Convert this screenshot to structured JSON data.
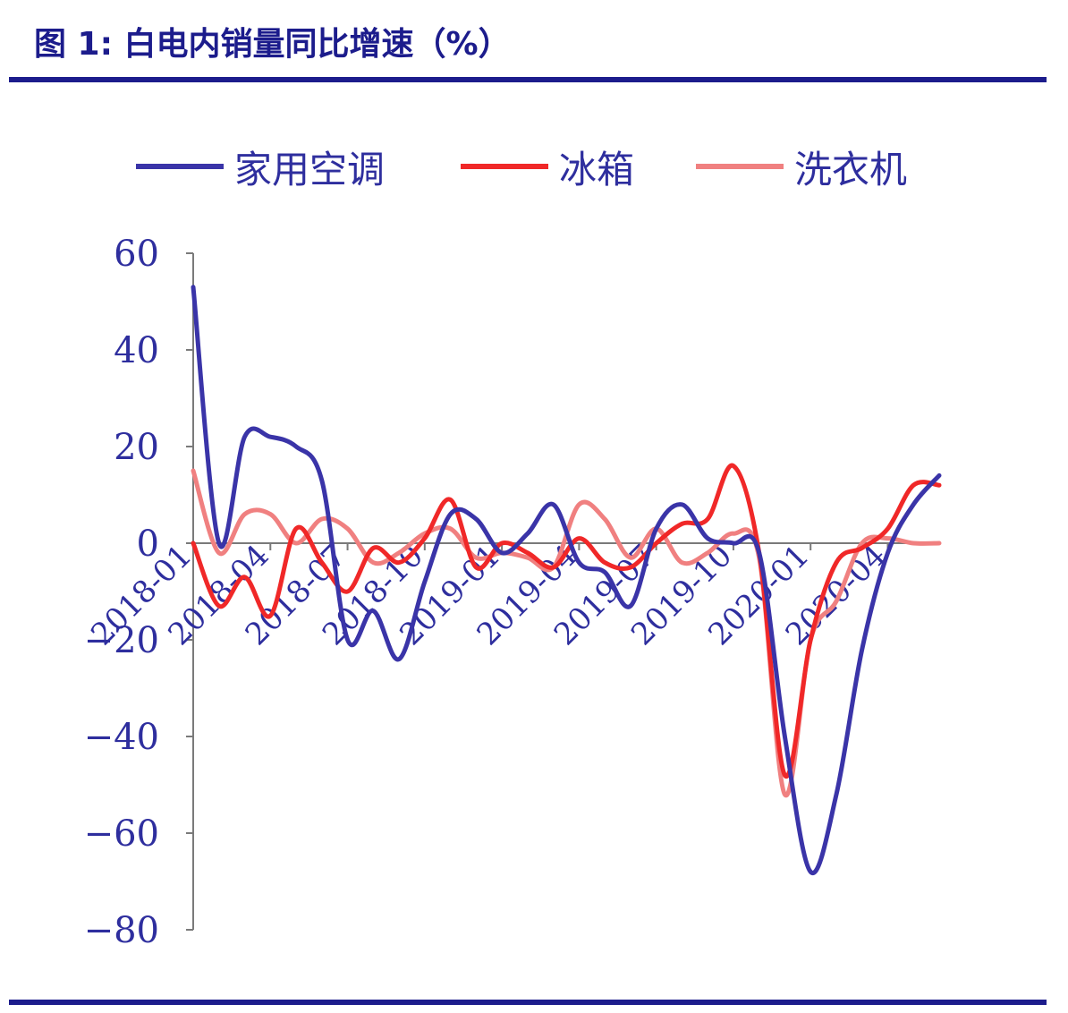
{
  "figure": {
    "title": "图  1:  白电内销量同比增速（%）"
  },
  "colors": {
    "frame": "#1c1c8c",
    "text": "#2e2e9e",
    "axis": "#7a7a7a"
  },
  "chart_data": {
    "type": "line",
    "x": [
      "2018-01",
      "2018-02",
      "2018-03",
      "2018-04",
      "2018-05",
      "2018-06",
      "2018-07",
      "2018-08",
      "2018-09",
      "2018-10",
      "2018-11",
      "2018-12",
      "2019-01",
      "2019-02",
      "2019-03",
      "2019-04",
      "2019-05",
      "2019-06",
      "2019-07",
      "2019-08",
      "2019-09",
      "2019-10",
      "2019-11",
      "2019-12",
      "2020-01",
      "2020-02",
      "2020-03",
      "2020-04",
      "2020-05",
      "2020-06"
    ],
    "xticks": [
      "2018-01",
      "2018-04",
      "2018-07",
      "2018-10",
      "2019-01",
      "2019-04",
      "2019-07",
      "2019-10",
      "2020-01",
      "2020-04"
    ],
    "yticks": [
      60,
      40,
      20,
      0,
      -20,
      -40,
      -60,
      -80
    ],
    "ylim": [
      -80,
      60
    ],
    "legend_position": "top",
    "grid": false,
    "series": [
      {
        "name": "家用空调",
        "color": "#3a34a8",
        "values": [
          53,
          0,
          22,
          22,
          20,
          13,
          -20,
          -14,
          -24,
          -8,
          6,
          5,
          -2,
          2,
          8,
          -4,
          -6,
          -13,
          3,
          8,
          1,
          0,
          -2,
          -40,
          -68,
          -52,
          -22,
          -2,
          8,
          14
        ]
      },
      {
        "name": "冰箱",
        "color": "#f02828",
        "values": [
          0,
          -13,
          -7,
          -15,
          3,
          -4,
          -10,
          -1,
          -4,
          1,
          9,
          -5,
          0,
          -2,
          -5,
          1,
          -4,
          -5,
          0,
          4,
          5,
          16,
          -2,
          -48,
          -20,
          -4,
          -1,
          3,
          12,
          12
        ]
      },
      {
        "name": "洗衣机",
        "color": "#f08080",
        "values": [
          15,
          -2,
          6,
          6,
          0,
          5,
          3,
          -4,
          -2,
          2,
          3,
          -3,
          -2,
          -3,
          -5,
          8,
          5,
          -3,
          3,
          -4,
          -2,
          2,
          -3,
          -52,
          -20,
          -12,
          0,
          1,
          0,
          0
        ]
      }
    ]
  }
}
